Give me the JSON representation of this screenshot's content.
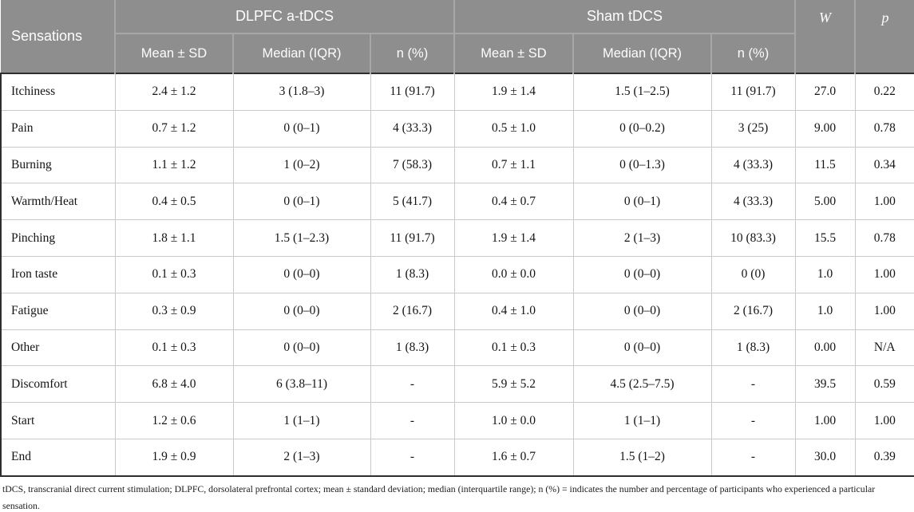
{
  "table": {
    "col1_header": "Sensations",
    "group_headers": {
      "dlpfc": "DLPFC a-tDCS",
      "sham": "Sham tDCS"
    },
    "sub_headers": {
      "mean_sd": "Mean ± SD",
      "median_iqr": "Median (IQR)",
      "n_pct": "n (%)"
    },
    "stat_headers": {
      "w": "W",
      "p": "p"
    },
    "rows": [
      {
        "label": "Itchiness",
        "cells": [
          "2.4 ± 1.2",
          "3 (1.8–3)",
          "11 (91.7)",
          "1.9 ± 1.4",
          "1.5 (1–2.5)",
          "11 (91.7)",
          "27.0",
          "0.22"
        ]
      },
      {
        "label": "Pain",
        "cells": [
          "0.7 ± 1.2",
          "0 (0–1)",
          "4 (33.3)",
          "0.5 ± 1.0",
          "0 (0–0.2)",
          "3 (25)",
          "9.00",
          "0.78"
        ]
      },
      {
        "label": "Burning",
        "cells": [
          "1.1 ± 1.2",
          "1 (0–2)",
          "7 (58.3)",
          "0.7 ± 1.1",
          "0 (0–1.3)",
          "4 (33.3)",
          "11.5",
          "0.34"
        ]
      },
      {
        "label": "Warmth/Heat",
        "cells": [
          "0.4 ± 0.5",
          "0 (0–1)",
          "5 (41.7)",
          "0.4 ± 0.7",
          "0 (0–1)",
          "4 (33.3)",
          "5.00",
          "1.00"
        ]
      },
      {
        "label": "Pinching",
        "cells": [
          "1.8 ± 1.1",
          "1.5 (1–2.3)",
          "11 (91.7)",
          "1.9 ± 1.4",
          "2 (1–3)",
          "10 (83.3)",
          "15.5",
          "0.78"
        ]
      },
      {
        "label": "Iron taste",
        "cells": [
          "0.1 ± 0.3",
          "0 (0–0)",
          "1 (8.3)",
          "0.0 ± 0.0",
          "0 (0–0)",
          "0 (0)",
          "1.0",
          "1.00"
        ]
      },
      {
        "label": "Fatigue",
        "cells": [
          "0.3 ± 0.9",
          "0 (0–0)",
          "2 (16.7)",
          "0.4 ± 1.0",
          "0 (0–0)",
          "2 (16.7)",
          "1.0",
          "1.00"
        ]
      },
      {
        "label": "Other",
        "cells": [
          "0.1 ± 0.3",
          "0 (0–0)",
          "1 (8.3)",
          "0.1 ± 0.3",
          "0 (0–0)",
          "1 (8.3)",
          "0.00",
          "N/A"
        ]
      },
      {
        "label": "Discomfort",
        "cells": [
          "6.8 ± 4.0",
          "6 (3.8–11)",
          "-",
          "5.9 ± 5.2",
          "4.5 (2.5–7.5)",
          "-",
          "39.5",
          "0.59"
        ]
      },
      {
        "label": "Start",
        "cells": [
          "1.2 ± 0.6",
          "1 (1–1)",
          "-",
          "1.0 ± 0.0",
          "1 (1–1)",
          "-",
          "1.00",
          "1.00"
        ]
      },
      {
        "label": "End",
        "cells": [
          "1.9 ± 0.9",
          "2 (1–3)",
          "-",
          "1.6 ± 0.7",
          "1.5 (1–2)",
          "-",
          "30.0",
          "0.39"
        ]
      }
    ],
    "footnote": "tDCS, transcranial direct current stimulation; DLPFC, dorsolateral prefrontal cortex; mean ± standard deviation; median (interquartile range); n (%) = indicates the number and percentage of participants who experienced a particular sensation."
  },
  "colors": {
    "header_bg": "#8e8e8e",
    "header_text": "#fdfdfd",
    "header_divider": "#a7a7a7",
    "outer_border": "#2e2e2e",
    "inner_border": "#c9c9c9",
    "body_text": "#141414"
  }
}
